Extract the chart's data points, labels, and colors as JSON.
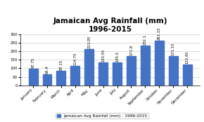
{
  "title": "Jamaican Avg Rainfall (mm)\n1996-2015",
  "months": [
    "January",
    "February",
    "March",
    "April",
    "May",
    "June",
    "July",
    "August",
    "September",
    "October",
    "November",
    "December"
  ],
  "values": [
    97.75,
    65.4,
    87.15,
    114.75,
    213.05,
    133.55,
    135.5,
    171.8,
    232.1,
    261.15,
    171.15,
    122.45
  ],
  "bar_color": "#4472C4",
  "ylim": [
    0,
    300
  ],
  "yticks": [
    0,
    50,
    100,
    150,
    200,
    250,
    300
  ],
  "legend_label": "Jamaican Avg Rainfall (mm) - 1996-2015",
  "background_color": "#ffffff",
  "title_fontsize": 7.5,
  "tick_fontsize": 4.0,
  "value_fontsize": 3.8,
  "legend_fontsize": 4.2
}
